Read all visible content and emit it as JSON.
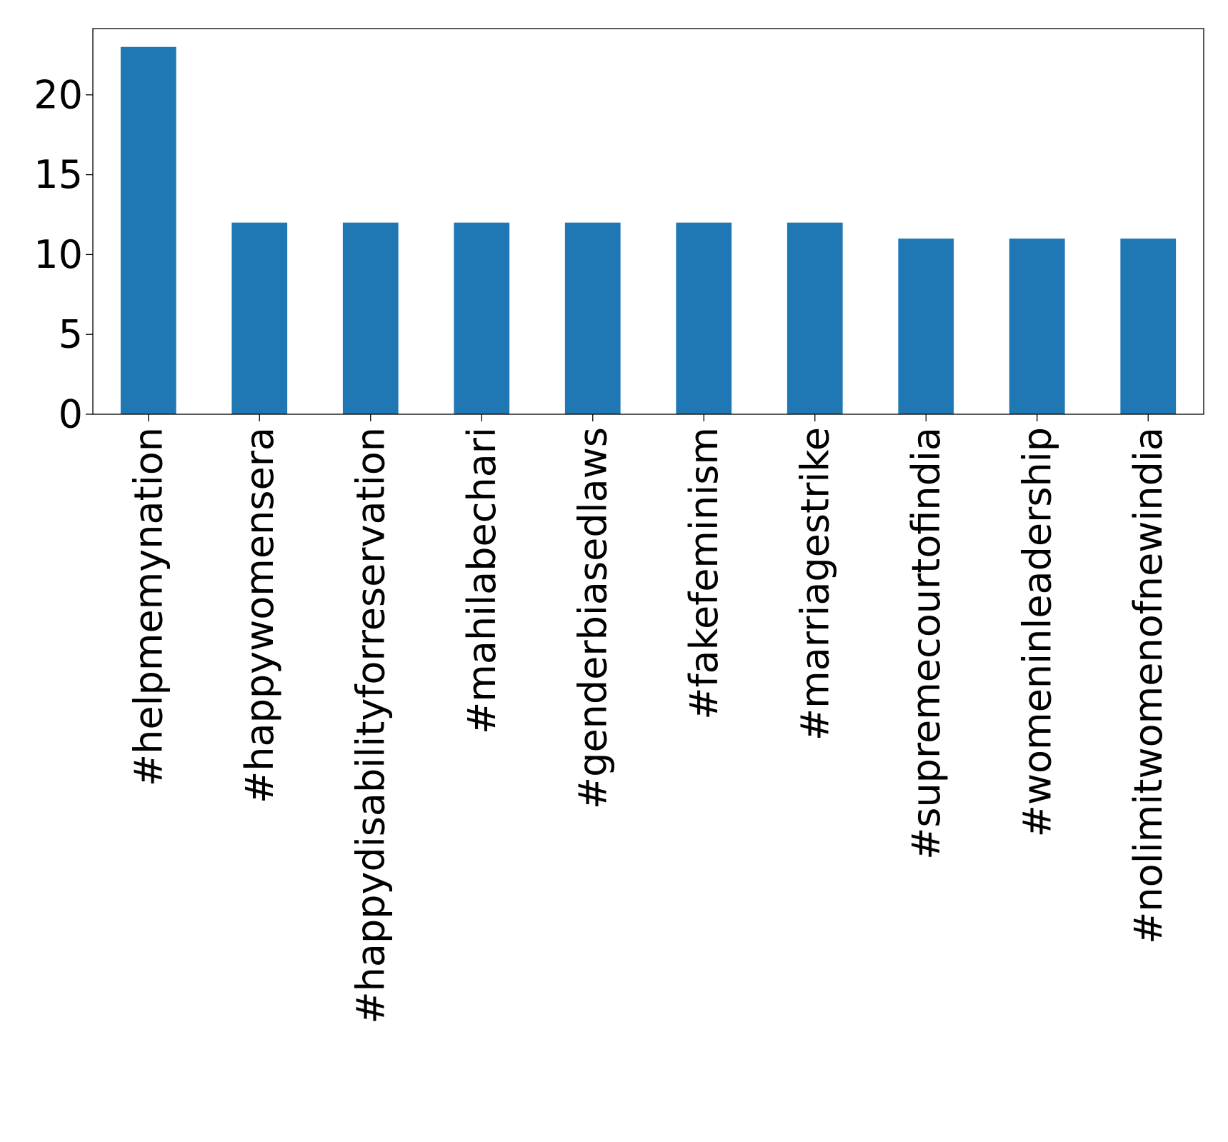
{
  "chart_data": {
    "type": "bar",
    "title": "",
    "xlabel": "",
    "ylabel": "",
    "categories": [
      "#helpmemynation",
      "#happywomensera",
      "#happydisabilityforreservation",
      "#mahilabechari",
      "#genderbiasedlaws",
      "#fakefeminism",
      "#marriagestrike",
      "#supremecourtofindia",
      "#womeninleadership",
      "#nolimitwomenofnewindia"
    ],
    "values": [
      23,
      12,
      12,
      12,
      12,
      12,
      12,
      11,
      11,
      11
    ],
    "ylim": [
      0,
      24.15
    ],
    "yticks": [
      0,
      5,
      10,
      15,
      20
    ],
    "bar_color": "#1f77b4",
    "grid": false,
    "legend": "none",
    "x_tick_rotation": "vertical"
  }
}
